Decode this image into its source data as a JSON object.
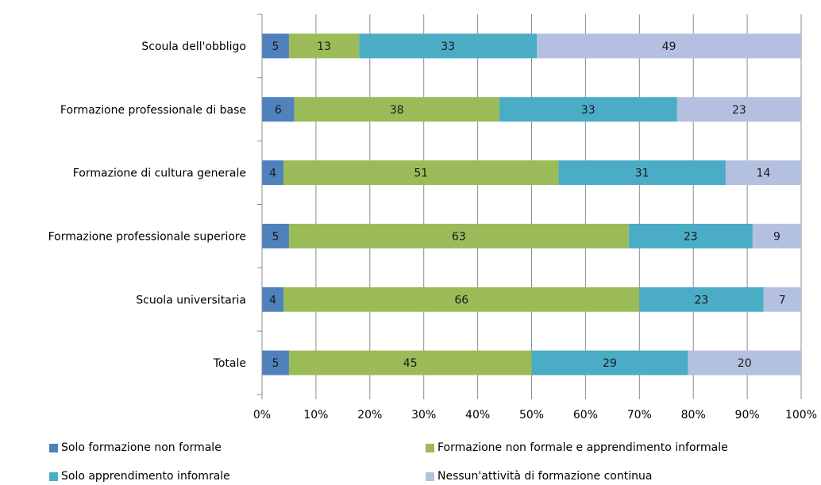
{
  "chart_data": {
    "type": "bar",
    "orientation": "horizontal",
    "stacked": true,
    "percent": true,
    "categories": [
      "Scoula dell'obbligo",
      "Formazione professionale di base",
      "Formazione di cultura generale",
      "Formazione professionale superiore",
      "Scuola universitaria",
      "Totale"
    ],
    "series": [
      {
        "name": "Solo formazione non formale",
        "color": "#4f81bd",
        "values": [
          5,
          6,
          4,
          5,
          4,
          5
        ]
      },
      {
        "name": "Formazione non formale e apprendimento informale",
        "color": "#9bbb59",
        "values": [
          13,
          38,
          51,
          63,
          66,
          45
        ]
      },
      {
        "name": "Solo apprendimento infomrale",
        "color": "#4bacc6",
        "values": [
          33,
          33,
          31,
          23,
          23,
          29
        ]
      },
      {
        "name": "Nessun'attività di formazione continua",
        "color": "#b3c0e0",
        "values": [
          49,
          23,
          14,
          9,
          7,
          20
        ]
      }
    ],
    "x_ticks": [
      "0%",
      "10%",
      "20%",
      "30%",
      "40%",
      "50%",
      "60%",
      "70%",
      "80%",
      "90%",
      "100%"
    ],
    "xlim": [
      0,
      100
    ],
    "grid": true,
    "legend_position": "bottom"
  }
}
